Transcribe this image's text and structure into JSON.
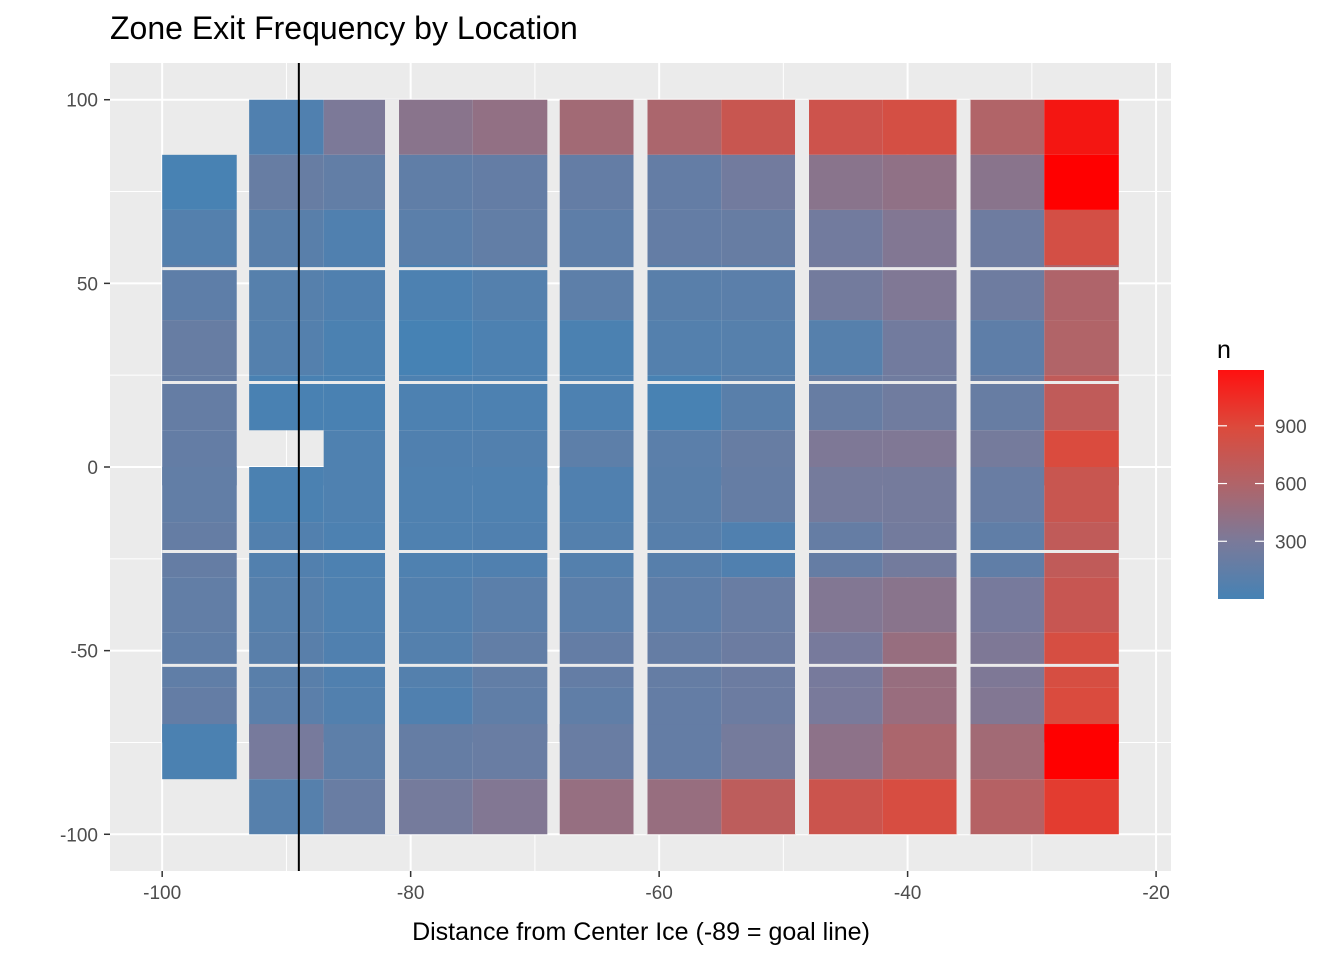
{
  "chart_data": {
    "type": "heatmap",
    "title": "Zone Exit Frequency by Location",
    "xlabel": "Distance from Center Ice (-89 = goal line)",
    "ylabel": "",
    "xlim": [
      -104.2,
      -18.8
    ],
    "ylim": [
      -110,
      110
    ],
    "x_ticks": [
      -100,
      -80,
      -60,
      -40,
      -20
    ],
    "y_ticks": [
      -100,
      -50,
      0,
      50,
      100
    ],
    "x_tick_labels": [
      "-100",
      "-80",
      "-60",
      "-40",
      "-20"
    ],
    "y_tick_labels": [
      "-100",
      "-50",
      "0",
      "50",
      "100"
    ],
    "grid": true,
    "vline_x": -89,
    "column_centers": [
      -97,
      -90,
      -84,
      -78,
      -72,
      -65,
      -58,
      -52,
      -45,
      -39,
      -32,
      -26
    ],
    "row_centers": [
      92.5,
      77.5,
      62.5,
      47.5,
      32.5,
      17.5,
      2.5,
      -7.5,
      -22.5,
      -37.5,
      -52.5,
      -67.5,
      -77.5,
      -92.5
    ],
    "cell_width": 6,
    "cell_height": 15,
    "cells": [
      {
        "x": -90,
        "y": 92.5,
        "n": 60
      },
      {
        "x": -84,
        "y": 92.5,
        "n": 310
      },
      {
        "x": -78,
        "y": 92.5,
        "n": 380
      },
      {
        "x": -72,
        "y": 92.5,
        "n": 430
      },
      {
        "x": -65,
        "y": 92.5,
        "n": 520
      },
      {
        "x": -58,
        "y": 92.5,
        "n": 570
      },
      {
        "x": -52,
        "y": 92.5,
        "n": 760
      },
      {
        "x": -45,
        "y": 92.5,
        "n": 790
      },
      {
        "x": -39,
        "y": 92.5,
        "n": 840
      },
      {
        "x": -32,
        "y": 92.5,
        "n": 600
      },
      {
        "x": -26,
        "y": 92.5,
        "n": 1100
      },
      {
        "x": -97,
        "y": 77.5,
        "n": 10
      },
      {
        "x": -90,
        "y": 77.5,
        "n": 190
      },
      {
        "x": -84,
        "y": 77.5,
        "n": 160
      },
      {
        "x": -78,
        "y": 77.5,
        "n": 150
      },
      {
        "x": -72,
        "y": 77.5,
        "n": 170
      },
      {
        "x": -65,
        "y": 77.5,
        "n": 170
      },
      {
        "x": -58,
        "y": 77.5,
        "n": 170
      },
      {
        "x": -52,
        "y": 77.5,
        "n": 250
      },
      {
        "x": -45,
        "y": 77.5,
        "n": 380
      },
      {
        "x": -39,
        "y": 77.5,
        "n": 420
      },
      {
        "x": -32,
        "y": 77.5,
        "n": 380
      },
      {
        "x": -26,
        "y": 77.5,
        "n": 1190
      },
      {
        "x": -97,
        "y": 62.5,
        "n": 80
      },
      {
        "x": -90,
        "y": 62.5,
        "n": 110
      },
      {
        "x": -84,
        "y": 62.5,
        "n": 60
      },
      {
        "x": -78,
        "y": 62.5,
        "n": 120
      },
      {
        "x": -72,
        "y": 62.5,
        "n": 160
      },
      {
        "x": -65,
        "y": 62.5,
        "n": 140
      },
      {
        "x": -58,
        "y": 62.5,
        "n": 170
      },
      {
        "x": -52,
        "y": 62.5,
        "n": 190
      },
      {
        "x": -45,
        "y": 62.5,
        "n": 250
      },
      {
        "x": -39,
        "y": 62.5,
        "n": 340
      },
      {
        "x": -32,
        "y": 62.5,
        "n": 230
      },
      {
        "x": -26,
        "y": 62.5,
        "n": 830
      },
      {
        "x": -97,
        "y": 47.5,
        "n": 140
      },
      {
        "x": -90,
        "y": 47.5,
        "n": 90
      },
      {
        "x": -84,
        "y": 47.5,
        "n": 60
      },
      {
        "x": -78,
        "y": 47.5,
        "n": 40
      },
      {
        "x": -72,
        "y": 47.5,
        "n": 80
      },
      {
        "x": -65,
        "y": 47.5,
        "n": 130
      },
      {
        "x": -58,
        "y": 47.5,
        "n": 110
      },
      {
        "x": -52,
        "y": 47.5,
        "n": 120
      },
      {
        "x": -45,
        "y": 47.5,
        "n": 260
      },
      {
        "x": -39,
        "y": 47.5,
        "n": 330
      },
      {
        "x": -32,
        "y": 47.5,
        "n": 230
      },
      {
        "x": -26,
        "y": 47.5,
        "n": 590
      },
      {
        "x": -97,
        "y": 32.5,
        "n": 190
      },
      {
        "x": -90,
        "y": 32.5,
        "n": 80
      },
      {
        "x": -84,
        "y": 32.5,
        "n": 30
      },
      {
        "x": -78,
        "y": 32.5,
        "n": 0
      },
      {
        "x": -72,
        "y": 32.5,
        "n": 40
      },
      {
        "x": -65,
        "y": 32.5,
        "n": 30
      },
      {
        "x": -58,
        "y": 32.5,
        "n": 80
      },
      {
        "x": -52,
        "y": 32.5,
        "n": 90
      },
      {
        "x": -45,
        "y": 32.5,
        "n": 90
      },
      {
        "x": -39,
        "y": 32.5,
        "n": 250
      },
      {
        "x": -32,
        "y": 32.5,
        "n": 140
      },
      {
        "x": -26,
        "y": 32.5,
        "n": 600
      },
      {
        "x": -97,
        "y": 17.5,
        "n": 180
      },
      {
        "x": -90,
        "y": 17.5,
        "n": 20
      },
      {
        "x": -84,
        "y": 17.5,
        "n": 20
      },
      {
        "x": -78,
        "y": 17.5,
        "n": 40
      },
      {
        "x": -72,
        "y": 17.5,
        "n": 40
      },
      {
        "x": -65,
        "y": 17.5,
        "n": 40
      },
      {
        "x": -58,
        "y": 17.5,
        "n": 10
      },
      {
        "x": -52,
        "y": 17.5,
        "n": 110
      },
      {
        "x": -45,
        "y": 17.5,
        "n": 190
      },
      {
        "x": -39,
        "y": 17.5,
        "n": 240
      },
      {
        "x": -32,
        "y": 17.5,
        "n": 190
      },
      {
        "x": -26,
        "y": 17.5,
        "n": 700
      },
      {
        "x": -97,
        "y": 2.5,
        "n": 170
      },
      {
        "x": -84,
        "y": 2.5,
        "n": 50
      },
      {
        "x": -78,
        "y": 2.5,
        "n": 60
      },
      {
        "x": -72,
        "y": 2.5,
        "n": 70
      },
      {
        "x": -65,
        "y": 2.5,
        "n": 130
      },
      {
        "x": -58,
        "y": 2.5,
        "n": 120
      },
      {
        "x": -52,
        "y": 2.5,
        "n": 190
      },
      {
        "x": -45,
        "y": 2.5,
        "n": 320
      },
      {
        "x": -39,
        "y": 2.5,
        "n": 330
      },
      {
        "x": -32,
        "y": 2.5,
        "n": 270
      },
      {
        "x": -26,
        "y": 2.5,
        "n": 880
      },
      {
        "x": -97,
        "y": -7.5,
        "n": 160
      },
      {
        "x": -90,
        "y": -7.5,
        "n": 30
      },
      {
        "x": -84,
        "y": -7.5,
        "n": 50
      },
      {
        "x": -78,
        "y": -7.5,
        "n": 50
      },
      {
        "x": -72,
        "y": -7.5,
        "n": 50
      },
      {
        "x": -65,
        "y": -7.5,
        "n": 60
      },
      {
        "x": -58,
        "y": -7.5,
        "n": 110
      },
      {
        "x": -52,
        "y": -7.5,
        "n": 180
      },
      {
        "x": -45,
        "y": -7.5,
        "n": 270
      },
      {
        "x": -39,
        "y": -7.5,
        "n": 270
      },
      {
        "x": -32,
        "y": -7.5,
        "n": 200
      },
      {
        "x": -26,
        "y": -7.5,
        "n": 760
      },
      {
        "x": -97,
        "y": -22.5,
        "n": 180
      },
      {
        "x": -90,
        "y": -22.5,
        "n": 70
      },
      {
        "x": -84,
        "y": -22.5,
        "n": 40
      },
      {
        "x": -78,
        "y": -22.5,
        "n": 50
      },
      {
        "x": -72,
        "y": -22.5,
        "n": 60
      },
      {
        "x": -65,
        "y": -22.5,
        "n": 80
      },
      {
        "x": -58,
        "y": -22.5,
        "n": 100
      },
      {
        "x": -52,
        "y": -22.5,
        "n": 60
      },
      {
        "x": -45,
        "y": -22.5,
        "n": 180
      },
      {
        "x": -39,
        "y": -22.5,
        "n": 260
      },
      {
        "x": -32,
        "y": -22.5,
        "n": 150
      },
      {
        "x": -26,
        "y": -22.5,
        "n": 700
      },
      {
        "x": -97,
        "y": -37.5,
        "n": 160
      },
      {
        "x": -90,
        "y": -37.5,
        "n": 90
      },
      {
        "x": -84,
        "y": -37.5,
        "n": 50
      },
      {
        "x": -78,
        "y": -37.5,
        "n": 70
      },
      {
        "x": -72,
        "y": -37.5,
        "n": 120
      },
      {
        "x": -65,
        "y": -37.5,
        "n": 120
      },
      {
        "x": -58,
        "y": -37.5,
        "n": 140
      },
      {
        "x": -52,
        "y": -37.5,
        "n": 200
      },
      {
        "x": -45,
        "y": -37.5,
        "n": 340
      },
      {
        "x": -39,
        "y": -37.5,
        "n": 380
      },
      {
        "x": -32,
        "y": -37.5,
        "n": 280
      },
      {
        "x": -26,
        "y": -37.5,
        "n": 750
      },
      {
        "x": -97,
        "y": -52.5,
        "n": 150
      },
      {
        "x": -90,
        "y": -52.5,
        "n": 110
      },
      {
        "x": -84,
        "y": -52.5,
        "n": 60
      },
      {
        "x": -78,
        "y": -52.5,
        "n": 80
      },
      {
        "x": -72,
        "y": -52.5,
        "n": 160
      },
      {
        "x": -65,
        "y": -52.5,
        "n": 170
      },
      {
        "x": -58,
        "y": -52.5,
        "n": 180
      },
      {
        "x": -52,
        "y": -52.5,
        "n": 220
      },
      {
        "x": -45,
        "y": -52.5,
        "n": 280
      },
      {
        "x": -39,
        "y": -52.5,
        "n": 460
      },
      {
        "x": -32,
        "y": -52.5,
        "n": 320
      },
      {
        "x": -26,
        "y": -52.5,
        "n": 850
      },
      {
        "x": -97,
        "y": -67.5,
        "n": 170
      },
      {
        "x": -90,
        "y": -67.5,
        "n": 120
      },
      {
        "x": -84,
        "y": -67.5,
        "n": 70
      },
      {
        "x": -78,
        "y": -67.5,
        "n": 60
      },
      {
        "x": -72,
        "y": -67.5,
        "n": 150
      },
      {
        "x": -65,
        "y": -67.5,
        "n": 150
      },
      {
        "x": -58,
        "y": -67.5,
        "n": 170
      },
      {
        "x": -52,
        "y": -67.5,
        "n": 220
      },
      {
        "x": -45,
        "y": -67.5,
        "n": 290
      },
      {
        "x": -39,
        "y": -67.5,
        "n": 470
      },
      {
        "x": -32,
        "y": -67.5,
        "n": 340
      },
      {
        "x": -26,
        "y": -67.5,
        "n": 880
      },
      {
        "x": -97,
        "y": -77.5,
        "n": 30
      },
      {
        "x": -90,
        "y": -77.5,
        "n": 280
      },
      {
        "x": -84,
        "y": -77.5,
        "n": 130
      },
      {
        "x": -78,
        "y": -77.5,
        "n": 180
      },
      {
        "x": -72,
        "y": -77.5,
        "n": 200
      },
      {
        "x": -65,
        "y": -77.5,
        "n": 200
      },
      {
        "x": -58,
        "y": -77.5,
        "n": 170
      },
      {
        "x": -52,
        "y": -77.5,
        "n": 270
      },
      {
        "x": -45,
        "y": -77.5,
        "n": 400
      },
      {
        "x": -39,
        "y": -77.5,
        "n": 570
      },
      {
        "x": -32,
        "y": -77.5,
        "n": 520
      },
      {
        "x": -26,
        "y": -77.5,
        "n": 1190
      },
      {
        "x": -90,
        "y": -92.5,
        "n": 90
      },
      {
        "x": -84,
        "y": -92.5,
        "n": 200
      },
      {
        "x": -78,
        "y": -92.5,
        "n": 270
      },
      {
        "x": -72,
        "y": -92.5,
        "n": 340
      },
      {
        "x": -65,
        "y": -92.5,
        "n": 450
      },
      {
        "x": -58,
        "y": -92.5,
        "n": 460
      },
      {
        "x": -52,
        "y": -92.5,
        "n": 680
      },
      {
        "x": -45,
        "y": -92.5,
        "n": 780
      },
      {
        "x": -39,
        "y": -92.5,
        "n": 860
      },
      {
        "x": -32,
        "y": -92.5,
        "n": 630
      },
      {
        "x": -26,
        "y": -92.5,
        "n": 950
      }
    ],
    "legend": {
      "title": "n",
      "position": "right",
      "min": 0,
      "max": 1190,
      "breaks": [
        300,
        600,
        900
      ],
      "break_labels": [
        "300",
        "600",
        "900"
      ],
      "low_color": "#4682B4",
      "high_color": "#FF0000"
    },
    "colors": {
      "panel_bg": "#EBEBEB",
      "grid_major": "#FFFFFF",
      "vline": "#000000"
    }
  }
}
